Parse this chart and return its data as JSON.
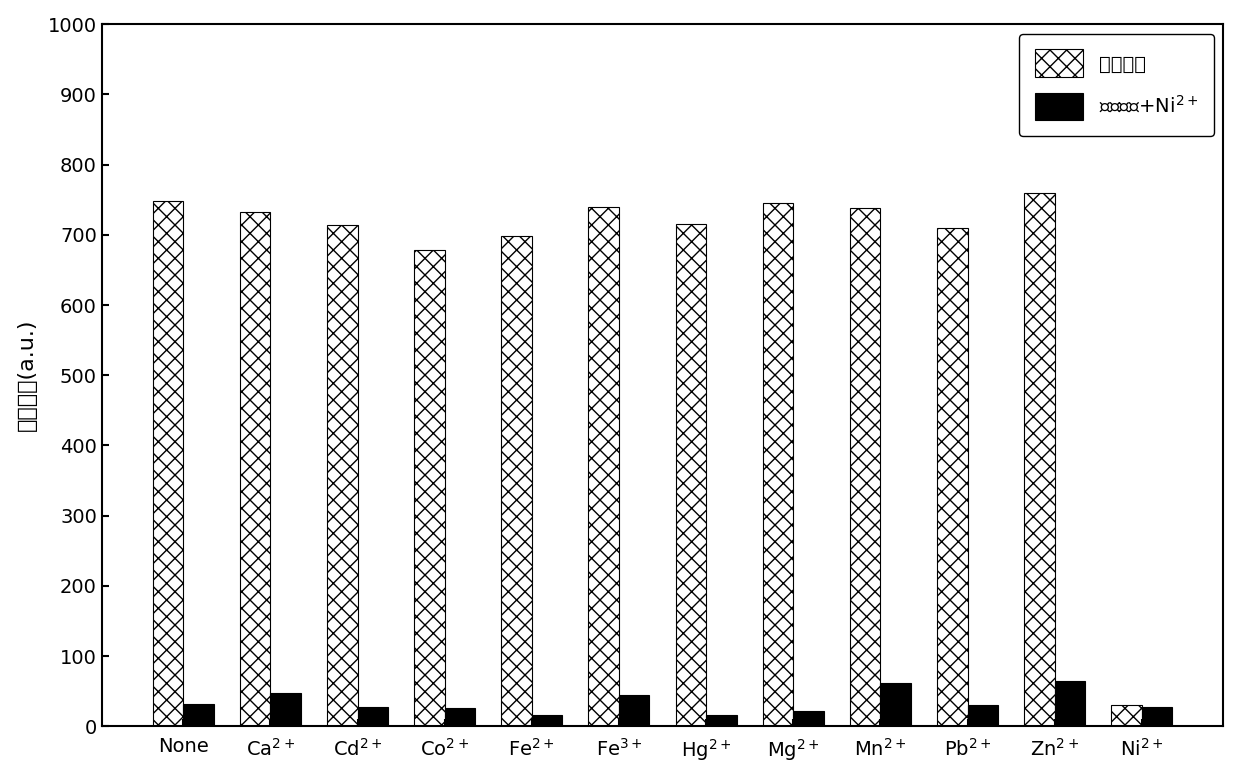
{
  "categories": [
    "None",
    "Ca$^{2+}$",
    "Cd$^{2+}$",
    "Co$^{2+}$",
    "Fe$^{2+}$",
    "Fe$^{3+}$",
    "Hg$^{2+}$",
    "Mg$^{2+}$",
    "Mn$^{2+}$",
    "Pb$^{2+}$",
    "Zn$^{2+}$",
    "Ni$^{2+}$"
  ],
  "competing_metal": [
    748,
    733,
    714,
    678,
    698,
    740,
    715,
    745,
    738,
    710,
    760,
    30
  ],
  "competing_plus_ni": [
    32,
    47,
    27,
    26,
    16,
    45,
    16,
    22,
    62,
    30,
    65,
    28
  ],
  "ylabel_chinese": "荧光强度",
  "ylabel_english": "(a.u.)",
  "legend_label1": "竞争金属",
  "legend_label2_chinese": "竞争金属+Ni",
  "legend_label2_super": "2+",
  "ylim": [
    0,
    1000
  ],
  "yticks": [
    0,
    100,
    200,
    300,
    400,
    500,
    600,
    700,
    800,
    900,
    1000
  ],
  "bar_width": 0.35,
  "hatch_pattern": "xx",
  "color_ni": "#000000",
  "background_color": "#ffffff",
  "font_size_tick": 14,
  "font_size_label": 16,
  "font_size_legend": 14
}
